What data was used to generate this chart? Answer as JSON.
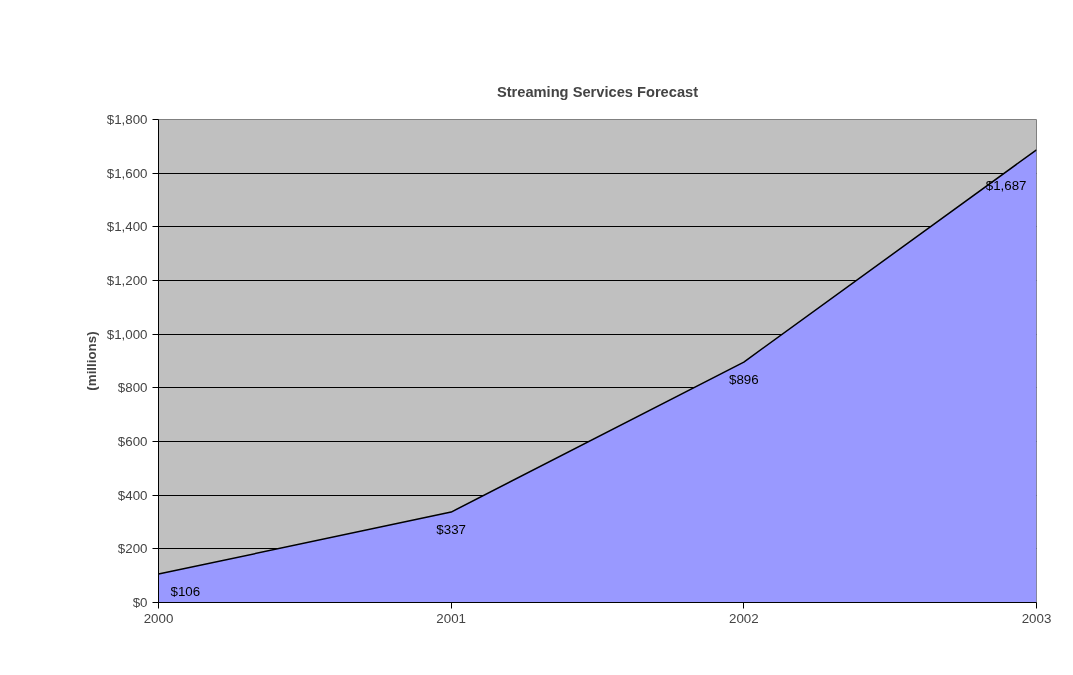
{
  "chart_data": {
    "type": "area",
    "title": "Streaming Services Forecast",
    "ylabel": "(millions)",
    "categories": [
      "2000",
      "2001",
      "2002",
      "2003"
    ],
    "series": [
      {
        "color": "#9999ff",
        "values": [
          106,
          337,
          896,
          1687
        ],
        "value_labels": [
          "$106",
          "$337",
          "$896",
          "$1,687"
        ]
      }
    ],
    "ylim": [
      0,
      1800
    ],
    "yticks": [
      {
        "value": 0,
        "label": "$0"
      },
      {
        "value": 200,
        "label": "$200"
      },
      {
        "value": 400,
        "label": "$400"
      },
      {
        "value": 600,
        "label": "$600"
      },
      {
        "value": 800,
        "label": "$800"
      },
      {
        "value": 1000,
        "label": "$1,000"
      },
      {
        "value": 1200,
        "label": "$1,200"
      },
      {
        "value": 1400,
        "label": "$1,400"
      },
      {
        "value": 1600,
        "label": "$1,600"
      },
      {
        "value": 1800,
        "label": "$1,800"
      }
    ],
    "grid": "y"
  }
}
